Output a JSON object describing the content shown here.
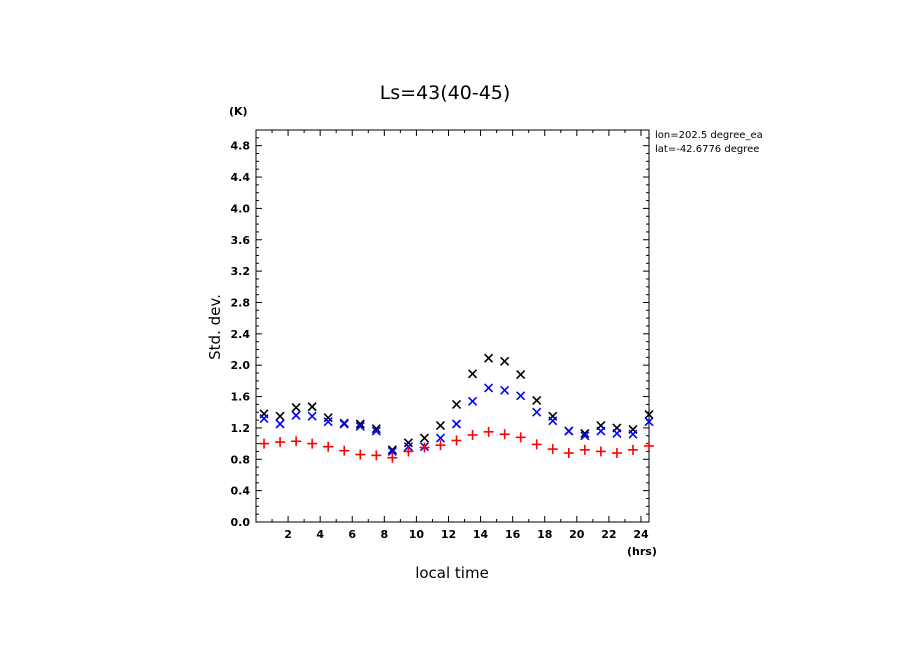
{
  "chart_data": {
    "type": "scatter",
    "title": "Ls=43(40-45)",
    "xlabel": "local time",
    "ylabel": "Std. dev.",
    "x_unit": "(hrs)",
    "y_unit": "(K)",
    "xlim": [
      0,
      24.5
    ],
    "ylim": [
      0,
      5.0
    ],
    "x_ticks": [
      2,
      4,
      6,
      8,
      10,
      12,
      14,
      16,
      18,
      20,
      22,
      24
    ],
    "x_tick_labels": [
      "2",
      "4",
      "6",
      "8",
      "10",
      "12",
      "14",
      "16",
      "18",
      "20",
      "22",
      "24"
    ],
    "y_ticks": [
      0.0,
      0.4,
      0.8,
      1.2,
      1.6,
      2.0,
      2.4,
      2.8,
      3.2,
      3.6,
      4.0,
      4.4,
      4.8
    ],
    "y_tick_labels": [
      "0.0",
      "0.4",
      "0.8",
      "1.2",
      "1.6",
      "2.0",
      "2.4",
      "2.8",
      "3.2",
      "3.6",
      "4.0",
      "4.4",
      "4.8"
    ],
    "annotations": [
      "lon=202.5 degree_ea",
      "lat=-42.6776 degree"
    ],
    "x": [
      0.5,
      1.5,
      2.5,
      3.5,
      4.5,
      5.5,
      6.5,
      7.5,
      8.5,
      9.5,
      10.5,
      11.5,
      12.5,
      13.5,
      14.5,
      15.5,
      16.5,
      17.5,
      18.5,
      19.5,
      20.5,
      21.5,
      22.5,
      23.5,
      24.5
    ],
    "series": [
      {
        "marker": "x",
        "color": "#000000",
        "values": [
          1.38,
          1.35,
          1.46,
          1.47,
          1.33,
          1.26,
          1.25,
          1.19,
          0.92,
          1.01,
          1.07,
          1.23,
          1.5,
          1.89,
          2.09,
          2.05,
          1.88,
          1.55,
          1.35,
          1.16,
          1.13,
          1.23,
          1.2,
          1.18,
          1.37
        ]
      },
      {
        "marker": "x",
        "color": "#0000ff",
        "values": [
          1.32,
          1.25,
          1.36,
          1.35,
          1.28,
          1.25,
          1.22,
          1.16,
          0.9,
          0.96,
          0.96,
          1.07,
          1.25,
          1.54,
          1.71,
          1.68,
          1.61,
          1.4,
          1.29,
          1.16,
          1.1,
          1.16,
          1.13,
          1.12,
          1.28
        ]
      },
      {
        "marker": "+",
        "color": "#ff0000",
        "values": [
          1.0,
          1.02,
          1.03,
          1.0,
          0.96,
          0.91,
          0.86,
          0.85,
          0.82,
          0.9,
          0.95,
          0.98,
          1.04,
          1.11,
          1.15,
          1.12,
          1.08,
          0.99,
          0.93,
          0.88,
          0.92,
          0.9,
          0.88,
          0.92,
          0.97
        ]
      }
    ]
  }
}
